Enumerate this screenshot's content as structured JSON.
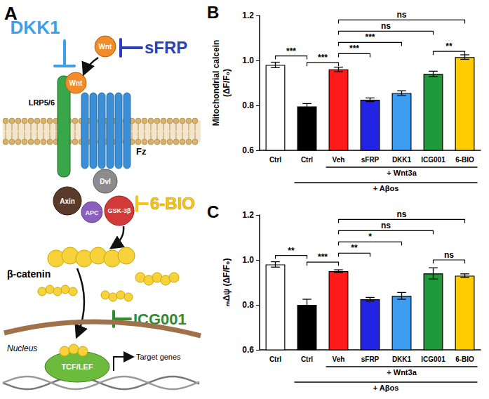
{
  "diagram": {
    "panel": "A",
    "labels": {
      "dkk1": "DKK1",
      "sfrp": "sFRP",
      "wnt_free": "Wnt",
      "wnt_bound": "Wnt",
      "lrp": "LRP5/6",
      "fz": "Fz",
      "dvl": "Dvl",
      "axin": "Axin",
      "apc": "APC",
      "gsk": "GSK-3β",
      "bio": "6-BIO",
      "bcat": "β-catenin",
      "icg": "ICG001",
      "nucleus": "Nucleus",
      "tcf": "TCF/LEF",
      "target": "Target genes"
    }
  },
  "chart_data": [
    {
      "type": "bar",
      "panel": "B",
      "ylabel": "Mitochondrial calcein\n(ΔF/F₀)",
      "categories": [
        "Ctrl",
        "Ctrl",
        "Veh",
        "sFRP",
        "DKK1",
        "ICG001",
        "6-BIO"
      ],
      "values": [
        0.98,
        0.795,
        0.96,
        0.825,
        0.855,
        0.94,
        1.015
      ],
      "errors": [
        0.012,
        0.013,
        0.01,
        0.008,
        0.01,
        0.012,
        0.01
      ],
      "colors": [
        "#ffffff",
        "#000000",
        "#ff1a1a",
        "#2323e6",
        "#3b9cf0",
        "#1f9a3a",
        "#ffcc00"
      ],
      "ylim": [
        0.6,
        1.2
      ],
      "yticks": [
        0.6,
        0.8,
        {
          "value": 1,
          "label": "1.0"
        },
        1.2
      ],
      "grid": false,
      "groups": [
        {
          "label": "+ Wnt3a",
          "from": 2,
          "to": 6
        },
        {
          "label": "+ Aβos",
          "from": 1,
          "to": 6
        }
      ],
      "significance": [
        {
          "from": 0,
          "to": 1,
          "y": 1.02,
          "label": "***"
        },
        {
          "from": 1,
          "to": 2,
          "y": 0.99,
          "label": "***"
        },
        {
          "from": 2,
          "to": 3,
          "y": 1.03,
          "label": "***"
        },
        {
          "from": 2,
          "to": 4,
          "y": 1.08,
          "label": "***"
        },
        {
          "from": 2,
          "to": 5,
          "y": 1.13,
          "label": "ns"
        },
        {
          "from": 2,
          "to": 6,
          "y": 1.18,
          "label": "ns"
        },
        {
          "from": 5,
          "to": 6,
          "y": 1.04,
          "label": "**"
        }
      ]
    },
    {
      "type": "bar",
      "panel": "C",
      "ylabel": "ₘΔψ (ΔF/F₀)",
      "categories": [
        "Ctrl",
        "Ctrl",
        "Veh",
        "sFRP",
        "DKK1",
        "ICG001",
        "6-BIO"
      ],
      "values": [
        0.98,
        0.8,
        0.95,
        0.825,
        0.84,
        0.94,
        0.93
      ],
      "errors": [
        0.012,
        0.025,
        0.006,
        0.008,
        0.015,
        0.025,
        0.008
      ],
      "colors": [
        "#ffffff",
        "#000000",
        "#ff1a1a",
        "#2323e6",
        "#3b9cf0",
        "#1f9a3a",
        "#ffcc00"
      ],
      "ylim": [
        0.6,
        1.2
      ],
      "yticks": [
        0.6,
        0.8,
        {
          "value": 1,
          "label": "1.0"
        },
        1.2
      ],
      "grid": false,
      "groups": [
        {
          "label": "+ Wnt3a",
          "from": 2,
          "to": 6
        },
        {
          "label": "+ Aβos",
          "from": 1,
          "to": 6
        }
      ],
      "significance": [
        {
          "from": 0,
          "to": 1,
          "y": 1.02,
          "label": "**"
        },
        {
          "from": 1,
          "to": 2,
          "y": 0.99,
          "label": "***"
        },
        {
          "from": 2,
          "to": 3,
          "y": 1.03,
          "label": "**"
        },
        {
          "from": 2,
          "to": 4,
          "y": 1.08,
          "label": "*"
        },
        {
          "from": 2,
          "to": 5,
          "y": 1.13,
          "label": "ns"
        },
        {
          "from": 2,
          "to": 6,
          "y": 1.18,
          "label": "ns"
        },
        {
          "from": 5,
          "to": 6,
          "y": 1.0,
          "label": "ns"
        }
      ]
    }
  ]
}
